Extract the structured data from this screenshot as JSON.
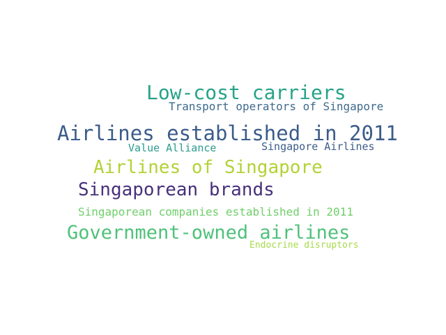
{
  "words": [
    {
      "text": "Low-cost carriers",
      "color": "#26a387"
    },
    {
      "text": "Transport operators of Singapore",
      "color": "#3f6a8c"
    },
    {
      "text": "Airlines established in 2011",
      "color": "#3b5b8a"
    },
    {
      "text": "Value Alliance",
      "color": "#2b9c8f"
    },
    {
      "text": "Singapore Airlines",
      "color": "#3e5c8a"
    },
    {
      "text": "Airlines of Singapore",
      "color": "#b2d235"
    },
    {
      "text": "Singaporean brands",
      "color": "#47317a"
    },
    {
      "text": "Singaporean companies established in 2011",
      "color": "#6fcf6a"
    },
    {
      "text": "Government-owned airlines",
      "color": "#4fc17a"
    },
    {
      "text": "Endocrine disruptors",
      "color": "#a6db4a"
    }
  ]
}
